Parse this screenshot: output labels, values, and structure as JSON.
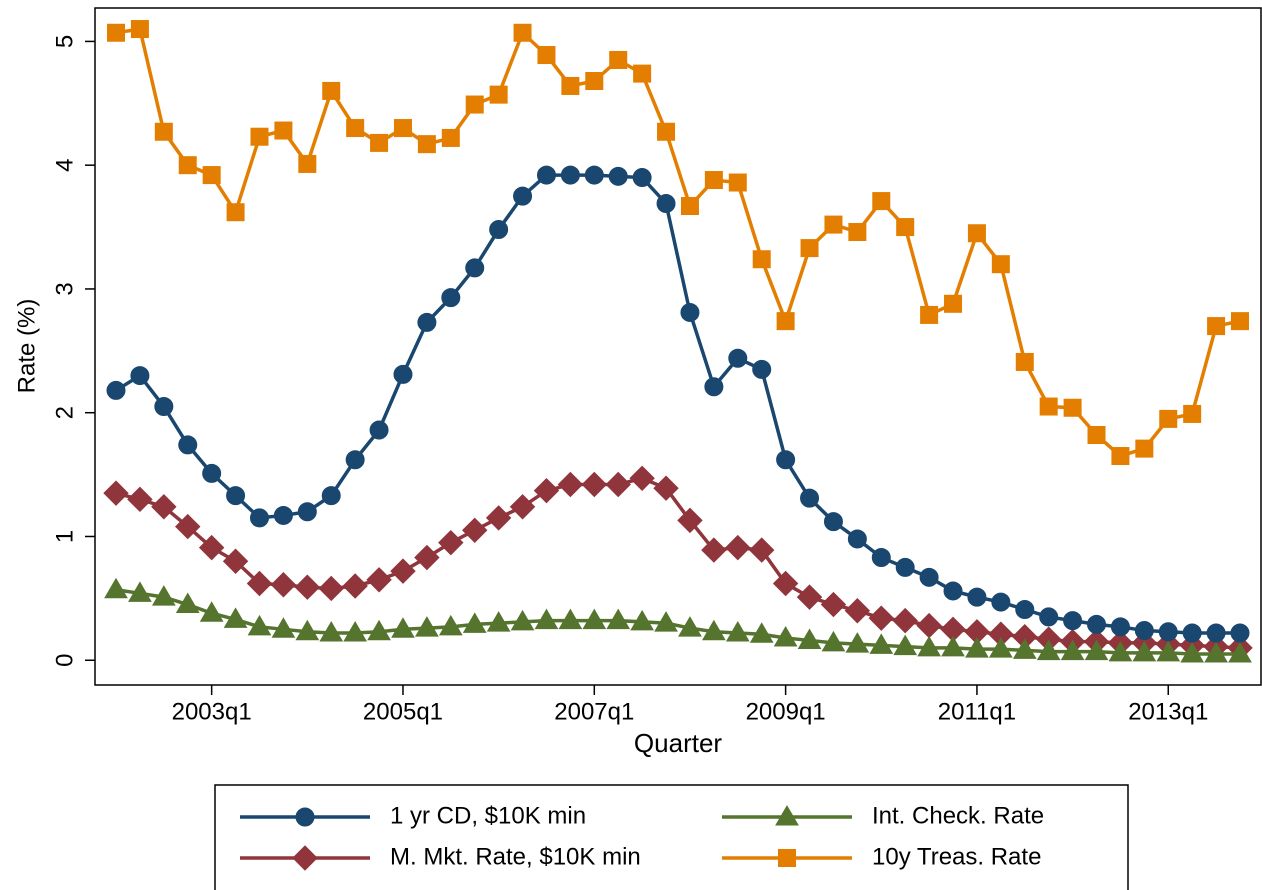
{
  "chart_data": {
    "type": "line",
    "x_label": "Quarter",
    "y_label": "Rate (%)",
    "categories": [
      null,
      null,
      null,
      null,
      "2003q1",
      null,
      null,
      null,
      null,
      null,
      null,
      null,
      "2005q1",
      null,
      null,
      null,
      null,
      null,
      null,
      null,
      "2007q1",
      null,
      null,
      null,
      null,
      null,
      null,
      null,
      "2009q1",
      null,
      null,
      null,
      null,
      null,
      null,
      null,
      "2011q1",
      null,
      null,
      null,
      null,
      null,
      null,
      null,
      "2013q1",
      null,
      null,
      null
    ],
    "ylim": [
      -0.2,
      5.27
    ],
    "yticks": [
      0,
      1,
      2,
      3,
      4,
      5
    ],
    "grid": false,
    "legend": "bottom",
    "series": [
      {
        "name": "1 yr CD, $10K min",
        "color": "#1a476f",
        "marker": "circle",
        "values": [
          2.18,
          2.3,
          2.05,
          1.74,
          1.51,
          1.33,
          1.15,
          1.17,
          1.2,
          1.33,
          1.62,
          1.86,
          2.31,
          2.73,
          2.93,
          3.17,
          3.48,
          3.75,
          3.92,
          3.92,
          3.92,
          3.91,
          3.9,
          3.69,
          2.81,
          2.21,
          2.44,
          2.35,
          1.62,
          1.31,
          1.12,
          0.98,
          0.83,
          0.75,
          0.67,
          0.56,
          0.51,
          0.47,
          0.41,
          0.35,
          0.32,
          0.29,
          0.27,
          0.24,
          0.23,
          0.22,
          0.22,
          0.22
        ]
      },
      {
        "name": "Int. Check. Rate",
        "color": "#55752f",
        "marker": "triangle",
        "values": [
          0.57,
          0.54,
          0.51,
          0.45,
          0.38,
          0.33,
          0.27,
          0.25,
          0.23,
          0.22,
          0.22,
          0.23,
          0.25,
          0.26,
          0.27,
          0.29,
          0.3,
          0.31,
          0.32,
          0.32,
          0.32,
          0.32,
          0.31,
          0.3,
          0.26,
          0.23,
          0.22,
          0.21,
          0.18,
          0.16,
          0.14,
          0.13,
          0.12,
          0.11,
          0.1,
          0.1,
          0.09,
          0.09,
          0.08,
          0.07,
          0.07,
          0.07,
          0.06,
          0.06,
          0.06,
          0.05,
          0.05,
          0.05
        ]
      },
      {
        "name": "M. Mkt. Rate, $10K min",
        "color": "#90353b",
        "marker": "diamond",
        "values": [
          1.35,
          1.3,
          1.24,
          1.08,
          0.91,
          0.8,
          0.62,
          0.61,
          0.59,
          0.58,
          0.6,
          0.65,
          0.72,
          0.83,
          0.95,
          1.05,
          1.15,
          1.24,
          1.37,
          1.42,
          1.42,
          1.42,
          1.47,
          1.39,
          1.13,
          0.89,
          0.91,
          0.89,
          0.62,
          0.51,
          0.45,
          0.4,
          0.34,
          0.32,
          0.28,
          0.25,
          0.23,
          0.21,
          0.19,
          0.17,
          0.15,
          0.15,
          0.14,
          0.14,
          0.13,
          0.12,
          0.11,
          0.1
        ]
      },
      {
        "name": "10y Treas. Rate",
        "color": "#e37e00",
        "marker": "square",
        "values": [
          5.07,
          5.1,
          4.27,
          4.0,
          3.92,
          3.62,
          4.23,
          4.28,
          4.01,
          4.6,
          4.3,
          4.18,
          4.3,
          4.17,
          4.22,
          4.49,
          4.57,
          5.07,
          4.89,
          4.64,
          4.68,
          4.85,
          4.74,
          4.27,
          3.67,
          3.88,
          3.86,
          3.24,
          2.74,
          3.33,
          3.52,
          3.46,
          3.71,
          3.5,
          2.79,
          2.88,
          3.45,
          3.2,
          2.41,
          2.05,
          2.04,
          1.82,
          1.65,
          1.71,
          1.95,
          1.99,
          2.7,
          2.74
        ]
      }
    ]
  }
}
